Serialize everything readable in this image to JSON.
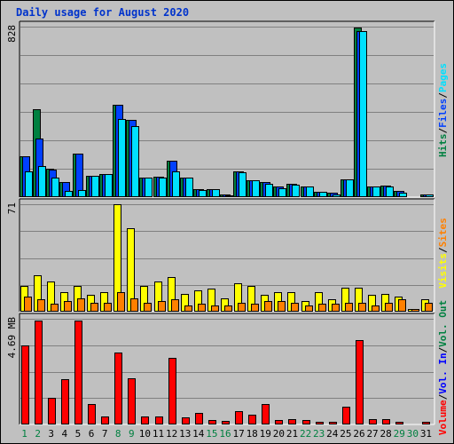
{
  "title": "Daily usage for August 2020",
  "chart_data": [
    {
      "type": "bar",
      "panel": "top",
      "max_label": "828",
      "ylim": [
        0,
        828
      ],
      "grid": true,
      "legend": [
        {
          "text": "Hits",
          "color": "#008040"
        },
        {
          "text": "Files",
          "color": "#0040ff"
        },
        {
          "text": "Pages",
          "color": "#00e0ff"
        }
      ],
      "legend_separator": "/",
      "categories": [
        "1",
        "2",
        "3",
        "4",
        "5",
        "6",
        "7",
        "8",
        "9",
        "10",
        "11",
        "12",
        "13",
        "14",
        "15",
        "16",
        "17",
        "18",
        "19",
        "20",
        "21",
        "22",
        "23",
        "24",
        "25",
        "26",
        "27",
        "28",
        "29",
        "30",
        "31"
      ],
      "series": [
        {
          "name": "Hits",
          "color": "#008040",
          "values": [
            200,
            425,
            140,
            75,
            210,
            105,
            110,
            450,
            375,
            95,
            100,
            175,
            95,
            40,
            40,
            15,
            125,
            80,
            75,
            50,
            65,
            50,
            25,
            20,
            85,
            825,
            50,
            55,
            30,
            5,
            15
          ]
        },
        {
          "name": "Files",
          "color": "#0040ff",
          "values": [
            200,
            285,
            135,
            75,
            210,
            105,
            110,
            450,
            375,
            95,
            100,
            175,
            95,
            40,
            40,
            15,
            125,
            80,
            75,
            50,
            65,
            50,
            25,
            20,
            85,
            805,
            50,
            55,
            30,
            5,
            15
          ]
        },
        {
          "name": "Pages",
          "color": "#00e0ff",
          "values": [
            125,
            150,
            95,
            30,
            35,
            105,
            110,
            380,
            345,
            95,
            95,
            125,
            95,
            35,
            40,
            10,
            120,
            80,
            65,
            45,
            60,
            50,
            25,
            15,
            85,
            805,
            50,
            50,
            20,
            5,
            12
          ]
        }
      ]
    },
    {
      "type": "bar",
      "panel": "middle",
      "max_label": "71",
      "ylim": [
        0,
        71
      ],
      "grid": true,
      "legend": [
        {
          "text": "Visits",
          "color": "#ffff00"
        },
        {
          "text": "Sites",
          "color": "#ff8000"
        }
      ],
      "legend_separator": "/",
      "categories": [
        "1",
        "2",
        "3",
        "4",
        "5",
        "6",
        "7",
        "8",
        "9",
        "10",
        "11",
        "12",
        "13",
        "14",
        "15",
        "16",
        "17",
        "18",
        "19",
        "20",
        "21",
        "22",
        "23",
        "24",
        "25",
        "26",
        "27",
        "28",
        "29",
        "30",
        "31"
      ],
      "series": [
        {
          "name": "Visits",
          "color": "#ffff00",
          "values": [
            17,
            24,
            20,
            13,
            17,
            11,
            13,
            71,
            55,
            17,
            20,
            23,
            12,
            14,
            15,
            9,
            19,
            17,
            11,
            13,
            13,
            7,
            13,
            8,
            16,
            16,
            11,
            12,
            10,
            2,
            8
          ]
        },
        {
          "name": "Sites",
          "color": "#ff8000",
          "values": [
            10,
            8,
            5,
            7,
            9,
            6,
            6,
            13,
            9,
            6,
            7,
            8,
            4,
            5,
            4,
            4,
            6,
            5,
            7,
            7,
            6,
            4,
            5,
            5,
            6,
            6,
            4,
            6,
            8,
            2,
            6
          ]
        }
      ]
    },
    {
      "type": "bar",
      "panel": "bottom",
      "max_label": "4.69 MB",
      "ylim": [
        0,
        4.69
      ],
      "grid": true,
      "legend": [
        {
          "text": "Volume",
          "color": "#ff0000"
        },
        {
          "text": "Vol. In",
          "color": "#0000ff"
        },
        {
          "text": "Vol. Out",
          "color": "#008040"
        }
      ],
      "legend_separator": "/",
      "categories": [
        "1",
        "2",
        "3",
        "4",
        "5",
        "6",
        "7",
        "8",
        "9",
        "10",
        "11",
        "12",
        "13",
        "14",
        "15",
        "16",
        "17",
        "18",
        "19",
        "20",
        "21",
        "22",
        "23",
        "24",
        "25",
        "26",
        "27",
        "28",
        "29",
        "30",
        "31"
      ],
      "series": [
        {
          "name": "Volume",
          "color": "#ff0000",
          "values": [
            3.5,
            4.6,
            1.2,
            2.0,
            4.6,
            0.9,
            0.35,
            3.2,
            2.05,
            0.35,
            0.35,
            2.95,
            0.3,
            0.5,
            0.2,
            0.15,
            0.6,
            0.45,
            0.9,
            0.2,
            0.25,
            0.2,
            0.12,
            0.12,
            0.8,
            3.75,
            0.25,
            0.25,
            0.12,
            0.05,
            0.1
          ]
        }
      ]
    }
  ],
  "x_label_colors": {
    "default": "#000000",
    "weekend": "#008040"
  },
  "weekend_days": [
    "1",
    "2",
    "8",
    "9",
    "15",
    "16",
    "22",
    "23",
    "29",
    "30"
  ]
}
